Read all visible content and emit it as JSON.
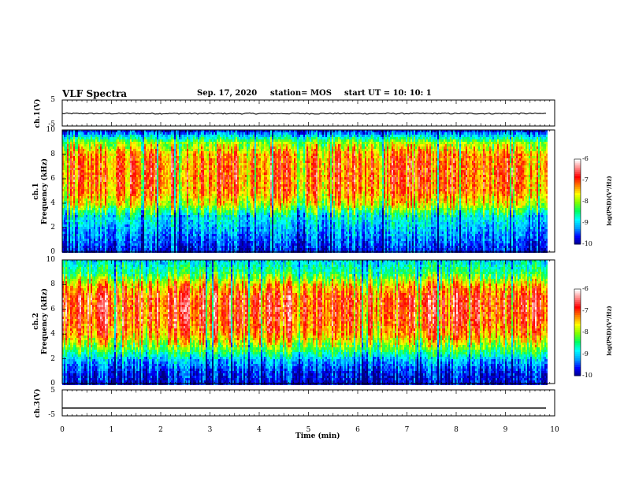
{
  "header": {
    "title": "VLF Spectra",
    "date": "Sep. 17, 2020",
    "station": "station= MOS",
    "start": "start  UT =   10: 10: 1"
  },
  "chart_data": [
    {
      "type": "line",
      "panel": "ch1-waveform",
      "ylabel": "ch.1(V)",
      "yticks": [
        "5",
        "-5"
      ],
      "ylim": [
        -5,
        5
      ],
      "x": [
        0,
        9.83
      ],
      "values": [
        -0.2,
        -0.2
      ]
    },
    {
      "type": "heatmap",
      "panel": "ch1-spectrogram",
      "ylabel_line1": "ch.1",
      "ylabel_line2": "Frequency  (kHz)",
      "ylim": [
        0,
        10
      ],
      "yticks": [
        "0",
        "2",
        "4",
        "6",
        "8",
        "10"
      ],
      "xlim": [
        0,
        9.83
      ],
      "band_profile_khz": [
        0,
        1,
        2,
        3,
        4,
        5,
        6,
        7,
        8,
        9,
        10
      ],
      "band_profile_log_psd": [
        -9.6,
        -9.3,
        -9.0,
        -8.7,
        -7.6,
        -7.1,
        -7.0,
        -7.0,
        -7.1,
        -7.8,
        -9.5
      ],
      "colorbar": {
        "ticks": [
          "-6",
          "-7",
          "-8",
          "-9",
          "-10"
        ],
        "range": [
          -10,
          -6
        ],
        "label": "log(PSD)(V²/Hz)"
      }
    },
    {
      "type": "heatmap",
      "panel": "ch2-spectrogram",
      "ylabel_line1": "ch.2",
      "ylabel_line2": "Frequency  (kHz)",
      "ylim": [
        0,
        10
      ],
      "yticks": [
        "0",
        "2",
        "4",
        "6",
        "8",
        "10"
      ],
      "xlim": [
        0,
        9.83
      ],
      "band_profile_khz": [
        0,
        1,
        2,
        3,
        4,
        5,
        6,
        7,
        8,
        9,
        10
      ],
      "band_profile_log_psd": [
        -9.7,
        -9.5,
        -9.0,
        -8.0,
        -7.2,
        -6.9,
        -6.8,
        -6.8,
        -7.3,
        -8.3,
        -8.8
      ],
      "colorbar": {
        "ticks": [
          "-6",
          "-7",
          "-8",
          "-9",
          "-10"
        ],
        "range": [
          -10,
          -6
        ],
        "label": "log(PSD)(V²/Hz)"
      }
    },
    {
      "type": "line",
      "panel": "ch3-waveform",
      "ylabel": "ch.3(V)",
      "yticks": [
        "5",
        "-5"
      ],
      "ylim": [
        -5,
        5
      ],
      "x": [
        0,
        9.83
      ],
      "values": [
        -2,
        -2
      ]
    }
  ],
  "xaxis": {
    "label": "Time  (min)",
    "range": [
      0,
      10
    ],
    "ticks": [
      "0",
      "1",
      "2",
      "3",
      "4",
      "5",
      "6",
      "7",
      "8",
      "9",
      "10"
    ]
  },
  "colors": {
    "colormap": [
      "#000080",
      "#0000ff",
      "#00a0ff",
      "#00ffff",
      "#00ff60",
      "#80ff00",
      "#ffff00",
      "#ff8000",
      "#ff0000",
      "#ff8080",
      "#ffffff"
    ]
  }
}
